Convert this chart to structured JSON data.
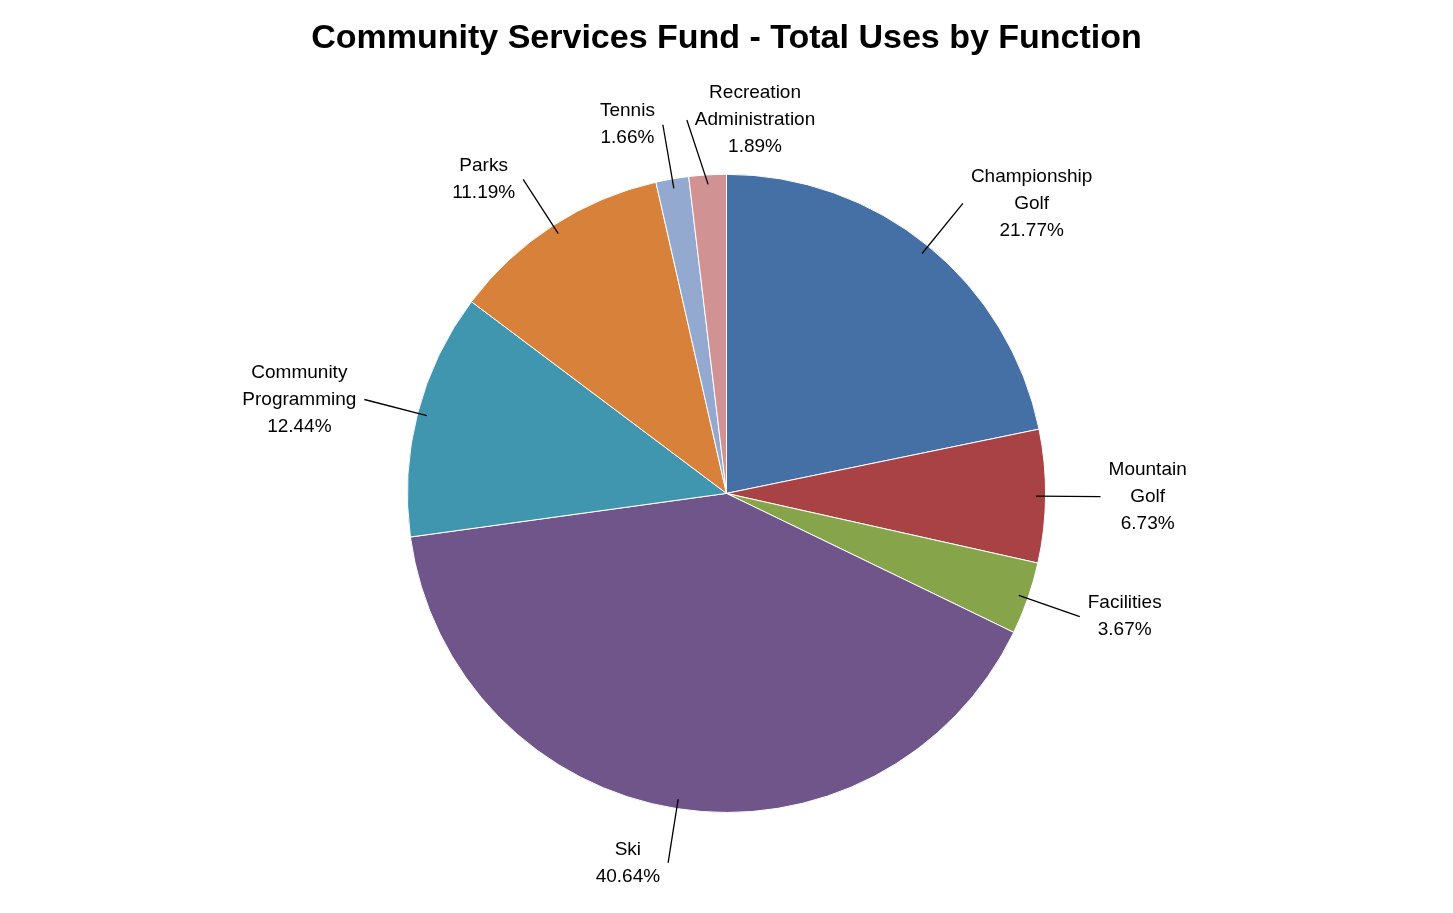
{
  "chart_data": {
    "type": "pie",
    "title": "Community Services Fund - Total Uses by Function",
    "categories": [
      "Championship Golf",
      "Mountain Golf",
      "Facilities",
      "Ski",
      "Community Programming",
      "Parks",
      "Tennis",
      "Recreation Administration"
    ],
    "values": [
      21.77,
      6.73,
      3.67,
      40.64,
      12.44,
      11.19,
      1.66,
      1.89
    ],
    "value_labels": [
      "21.77%",
      "6.73%",
      "3.67%",
      "40.64%",
      "12.44%",
      "11.19%",
      "1.66%",
      "1.89%"
    ],
    "colors": [
      "#4570a6",
      "#a84244",
      "#86a44a",
      "#6f558a",
      "#3f96ae",
      "#d8813b",
      "#93a9d0",
      "#d09292"
    ],
    "legend": false
  }
}
